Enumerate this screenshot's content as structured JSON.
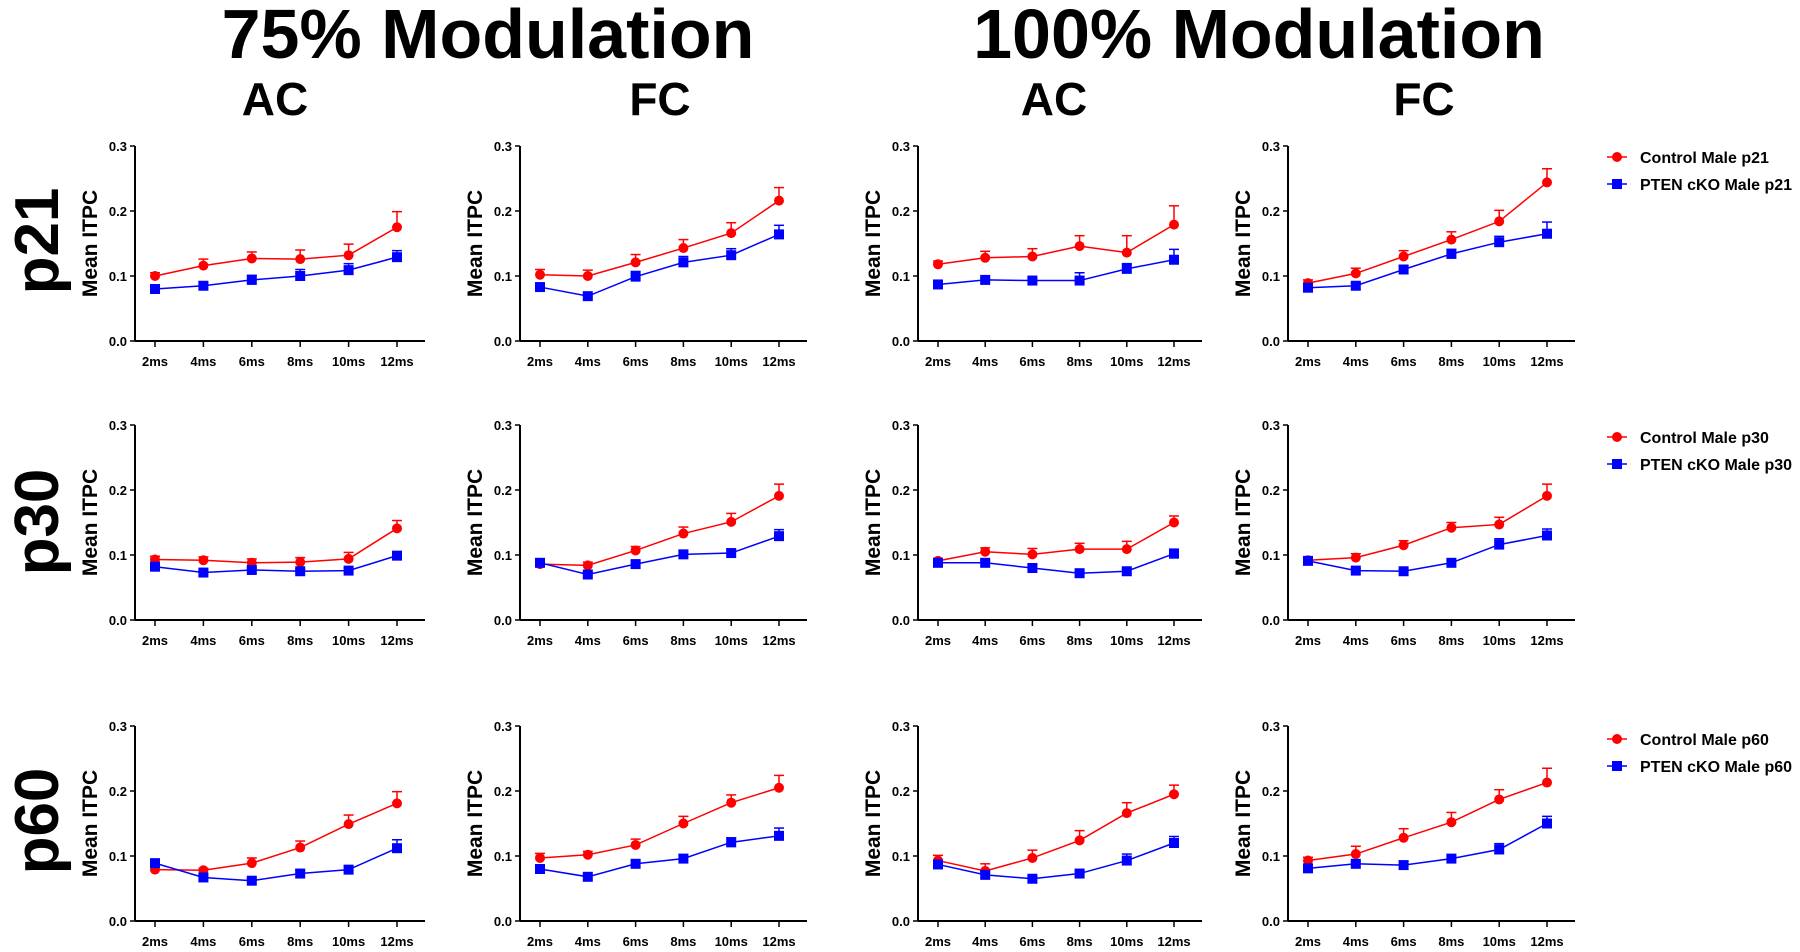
{
  "chart_data": {
    "type": "line",
    "group_titles": [
      "75% Modulation",
      "100% Modulation"
    ],
    "column_titles": [
      "AC",
      "FC",
      "AC",
      "FC"
    ],
    "row_labels": [
      "p21",
      "p30",
      "p60"
    ],
    "ylabel": "Mean ITPC",
    "ylim": [
      0,
      0.3
    ],
    "yticks": [
      "0.0",
      "0.1",
      "0.2",
      "0.3"
    ],
    "ytick_values": [
      0,
      0.1,
      0.2,
      0.3
    ],
    "categories": [
      "2ms",
      "4ms",
      "6ms",
      "8ms",
      "10ms",
      "12ms"
    ],
    "colors": {
      "control": "#ff0000",
      "pten": "#0000ff"
    },
    "legends": [
      [
        "Control Male p21",
        "PTEN cKO Male p21"
      ],
      [
        "Control Male p30",
        "PTEN cKO Male p30"
      ],
      [
        "Control Male p60",
        "PTEN cKO Male p60"
      ]
    ],
    "panels": [
      {
        "row": 0,
        "col": 0,
        "control": [
          0.1,
          0.116,
          0.127,
          0.126,
          0.132,
          0.175
        ],
        "control_err": [
          0.005,
          0.01,
          0.01,
          0.014,
          0.017,
          0.024
        ],
        "pten": [
          0.08,
          0.085,
          0.094,
          0.1,
          0.109,
          0.129
        ],
        "pten_err": [
          0.004,
          0.004,
          0.007,
          0.01,
          0.01,
          0.01
        ]
      },
      {
        "row": 0,
        "col": 1,
        "control": [
          0.102,
          0.1,
          0.121,
          0.143,
          0.166,
          0.216
        ],
        "control_err": [
          0.008,
          0.009,
          0.012,
          0.013,
          0.016,
          0.02
        ],
        "pten": [
          0.083,
          0.069,
          0.099,
          0.121,
          0.132,
          0.164
        ],
        "pten_err": [
          0.003,
          0.003,
          0.008,
          0.009,
          0.01,
          0.014
        ]
      },
      {
        "row": 0,
        "col": 2,
        "control": [
          0.118,
          0.128,
          0.13,
          0.146,
          0.136,
          0.179
        ],
        "control_err": [
          0.005,
          0.01,
          0.012,
          0.016,
          0.026,
          0.029
        ],
        "pten": [
          0.087,
          0.094,
          0.093,
          0.093,
          0.111,
          0.125
        ],
        "pten_err": [
          0.003,
          0.003,
          0.004,
          0.012,
          0.008,
          0.016
        ]
      },
      {
        "row": 0,
        "col": 3,
        "control": [
          0.089,
          0.104,
          0.13,
          0.156,
          0.184,
          0.244
        ],
        "control_err": [
          0.005,
          0.008,
          0.009,
          0.012,
          0.017,
          0.021
        ],
        "pten": [
          0.082,
          0.085,
          0.11,
          0.134,
          0.152,
          0.165
        ],
        "pten_err": [
          0.003,
          0.004,
          0.006,
          0.007,
          0.009,
          0.018
        ]
      },
      {
        "row": 1,
        "col": 0,
        "control": [
          0.093,
          0.092,
          0.088,
          0.089,
          0.094,
          0.141
        ],
        "control_err": [
          0.005,
          0.005,
          0.006,
          0.007,
          0.01,
          0.012
        ],
        "pten": [
          0.082,
          0.073,
          0.077,
          0.075,
          0.076,
          0.099
        ],
        "pten_err": [
          0.003,
          0.003,
          0.003,
          0.003,
          0.004,
          0.005
        ]
      },
      {
        "row": 1,
        "col": 1,
        "control": [
          0.086,
          0.084,
          0.107,
          0.133,
          0.151,
          0.191
        ],
        "control_err": [
          0.004,
          0.005,
          0.006,
          0.01,
          0.013,
          0.018
        ],
        "pten": [
          0.088,
          0.07,
          0.086,
          0.101,
          0.103,
          0.129
        ],
        "pten_err": [
          0.003,
          0.003,
          0.005,
          0.005,
          0.006,
          0.01
        ]
      },
      {
        "row": 1,
        "col": 2,
        "control": [
          0.091,
          0.105,
          0.101,
          0.109,
          0.109,
          0.15
        ],
        "control_err": [
          0.004,
          0.006,
          0.009,
          0.009,
          0.012,
          0.01
        ],
        "pten": [
          0.088,
          0.088,
          0.08,
          0.072,
          0.075,
          0.102
        ],
        "pten_err": [
          0.003,
          0.004,
          0.005,
          0.003,
          0.004,
          0.007
        ]
      },
      {
        "row": 1,
        "col": 3,
        "control": [
          0.092,
          0.096,
          0.115,
          0.142,
          0.147,
          0.191
        ],
        "control_err": [
          0.003,
          0.006,
          0.007,
          0.008,
          0.011,
          0.018
        ],
        "pten": [
          0.091,
          0.076,
          0.075,
          0.088,
          0.116,
          0.13
        ],
        "pten_err": [
          0.003,
          0.003,
          0.003,
          0.004,
          0.009,
          0.01
        ]
      },
      {
        "row": 2,
        "col": 0,
        "control": [
          0.079,
          0.078,
          0.089,
          0.113,
          0.149,
          0.181
        ],
        "control_err": [
          0.004,
          0.003,
          0.008,
          0.01,
          0.014,
          0.018
        ],
        "pten": [
          0.089,
          0.067,
          0.062,
          0.073,
          0.079,
          0.112
        ],
        "pten_err": [
          0.003,
          0.003,
          0.003,
          0.005,
          0.005,
          0.013
        ]
      },
      {
        "row": 2,
        "col": 1,
        "control": [
          0.097,
          0.102,
          0.117,
          0.15,
          0.182,
          0.205
        ],
        "control_err": [
          0.007,
          0.005,
          0.009,
          0.011,
          0.012,
          0.019
        ],
        "pten": [
          0.08,
          0.068,
          0.088,
          0.096,
          0.121,
          0.131
        ],
        "pten_err": [
          0.003,
          0.003,
          0.005,
          0.006,
          0.007,
          0.012
        ]
      },
      {
        "row": 2,
        "col": 2,
        "control": [
          0.093,
          0.077,
          0.097,
          0.124,
          0.166,
          0.195
        ],
        "control_err": [
          0.008,
          0.011,
          0.012,
          0.015,
          0.016,
          0.014
        ],
        "pten": [
          0.087,
          0.071,
          0.065,
          0.073,
          0.093,
          0.12
        ],
        "pten_err": [
          0.003,
          0.004,
          0.003,
          0.004,
          0.01,
          0.01
        ]
      },
      {
        "row": 2,
        "col": 3,
        "control": [
          0.093,
          0.103,
          0.128,
          0.152,
          0.187,
          0.213
        ],
        "control_err": [
          0.005,
          0.012,
          0.014,
          0.015,
          0.015,
          0.022
        ],
        "pten": [
          0.081,
          0.088,
          0.086,
          0.096,
          0.11,
          0.15
        ],
        "pten_err": [
          0.003,
          0.003,
          0.006,
          0.004,
          0.009,
          0.011
        ]
      }
    ]
  }
}
